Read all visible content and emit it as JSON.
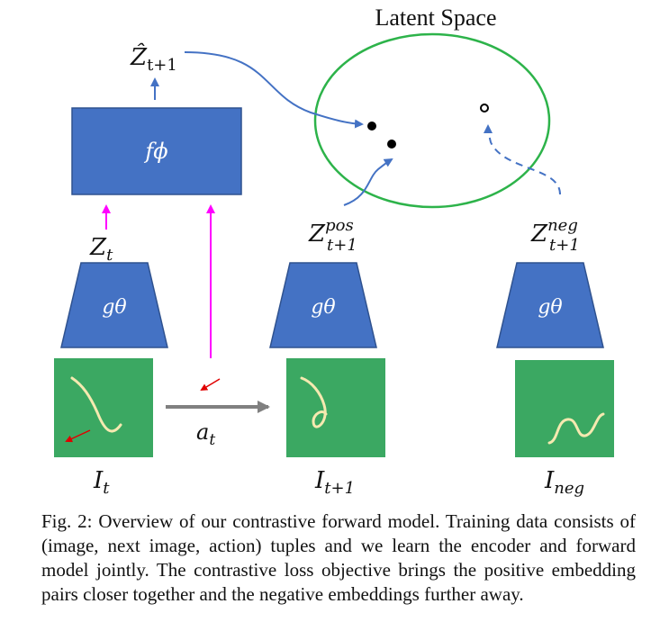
{
  "figure": {
    "latent_space_title": "Latent Space",
    "forward_model_label": "fϕ",
    "encoder_label": "gθ",
    "z_hat": {
      "base": "Ẑ",
      "sub": "t+1"
    },
    "z_t": {
      "base": "Z",
      "sub": "t"
    },
    "z_pos": {
      "base": "Z",
      "sup": "pos",
      "sub": "t+1"
    },
    "z_neg": {
      "base": "Z",
      "sup": "neg",
      "sub": "t+1"
    },
    "action": {
      "base": "a",
      "sub": "t"
    },
    "image_labels": {
      "i_t": {
        "base": "I",
        "sub": "t"
      },
      "i_t1": {
        "base": "I",
        "sub": "t+1"
      },
      "i_neg": {
        "base": "I",
        "sub": "neg"
      }
    },
    "colors": {
      "box_blue": "#4472C4",
      "arrow_blue": "#4472C4",
      "magenta": "#FF00FF",
      "circle_green": "#2DB34A",
      "image_green": "#3BA862",
      "rope": "#F5E9B0",
      "action_arrow": "#808080",
      "red": "#E00000"
    }
  },
  "caption": "Fig. 2: Overview of our contrastive forward model. Training data consists of (image, next image, action) tuples and we learn the encoder and forward model jointly. The contrastive loss objective brings the positive embedding pairs closer together and the negative embeddings further away."
}
